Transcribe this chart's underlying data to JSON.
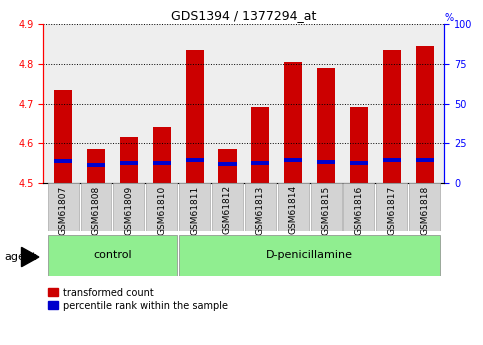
{
  "title": "GDS1394 / 1377294_at",
  "samples": [
    "GSM61807",
    "GSM61808",
    "GSM61809",
    "GSM61810",
    "GSM61811",
    "GSM61812",
    "GSM61813",
    "GSM61814",
    "GSM61815",
    "GSM61816",
    "GSM61817",
    "GSM61818"
  ],
  "red_values": [
    4.735,
    4.585,
    4.615,
    4.64,
    4.835,
    4.585,
    4.69,
    4.805,
    4.79,
    4.69,
    4.835,
    4.845
  ],
  "blue_values": [
    4.555,
    4.545,
    4.55,
    4.55,
    4.558,
    4.547,
    4.551,
    4.557,
    4.553,
    4.551,
    4.558,
    4.558
  ],
  "ymin": 4.5,
  "ymax": 4.9,
  "yticks_left": [
    4.5,
    4.6,
    4.7,
    4.8,
    4.9
  ],
  "yticks_right": [
    0,
    25,
    50,
    75,
    100
  ],
  "n_control": 4,
  "n_treatment": 8,
  "control_label": "control",
  "treatment_label": "D-penicillamine",
  "agent_label": "agent",
  "group_label_bg": "#90EE90",
  "sample_box_bg": "#d3d3d3",
  "red_color": "#cc0000",
  "blue_color": "#0000cc",
  "plot_bg": "#eeeeee",
  "legend_red": "transformed count",
  "legend_blue": "percentile rank within the sample",
  "bar_width": 0.55,
  "blue_bar_height": 0.01,
  "title_fontsize": 9,
  "tick_fontsize": 7,
  "label_fontsize": 8
}
